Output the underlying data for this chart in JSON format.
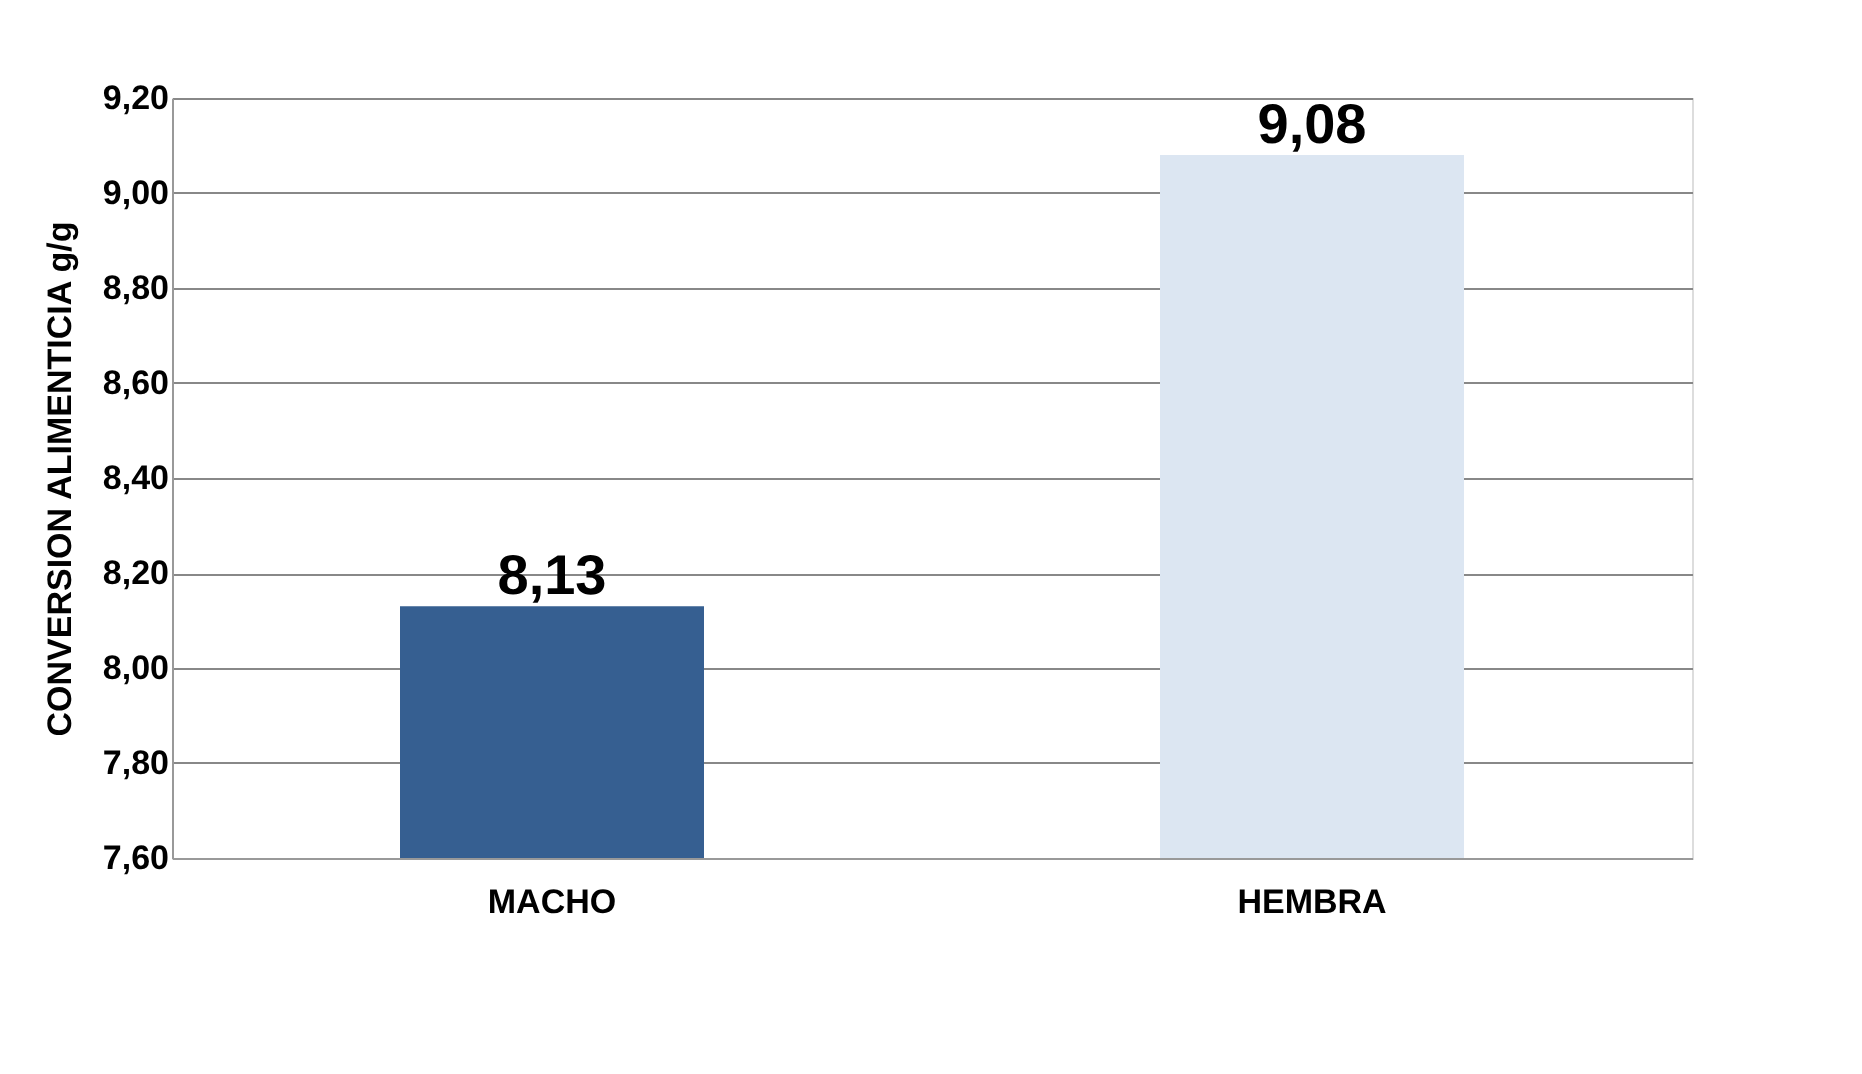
{
  "chart_data": {
    "type": "bar",
    "ylabel": "CONVERSION ALIMENTICIA g/g",
    "categories": [
      "MACHO",
      "HEMBRA"
    ],
    "values": [
      8.13,
      9.08
    ],
    "colors": [
      "#365f91",
      "#dce6f2"
    ],
    "value_labels": [
      "8,13",
      "9,08"
    ],
    "ylim": [
      7.6,
      9.2
    ],
    "yticks": [
      {
        "value": 7.6,
        "label": "7,60"
      },
      {
        "value": 7.8,
        "label": "7,80"
      },
      {
        "value": 8.0,
        "label": "8,00"
      },
      {
        "value": 8.2,
        "label": "8,20"
      },
      {
        "value": 8.4,
        "label": "8,40"
      },
      {
        "value": 8.6,
        "label": "8,60"
      },
      {
        "value": 8.8,
        "label": "8,80"
      },
      {
        "value": 9.0,
        "label": "9,00"
      },
      {
        "value": 9.2,
        "label": "9,20"
      }
    ],
    "grid": "y",
    "legend": false
  }
}
